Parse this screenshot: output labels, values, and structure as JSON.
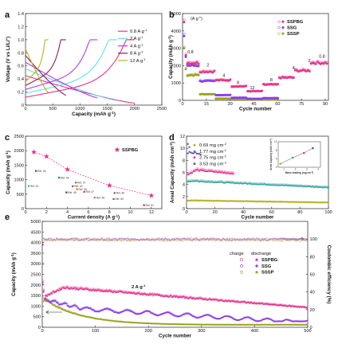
{
  "chart_data": [
    {
      "panel": "a",
      "type": "line",
      "xlabel": "Capacity (mAh g-1)",
      "ylabel": "Voltage (V vs Li/Li+)",
      "xlim": [
        0,
        2500
      ],
      "ylim": [
        0,
        1.4
      ],
      "xticks": [
        "0",
        "500",
        "1000",
        "1500",
        "2000",
        "2500"
      ],
      "yticks": [
        "0",
        "0.2",
        "0.4",
        "0.6",
        "0.8",
        "1.0",
        "1.2",
        "1.4"
      ],
      "series": [
        {
          "name": "0.8 A g-1",
          "color": "#e8338a",
          "capacity": 2000
        },
        {
          "name": "2 A g-1",
          "color": "#62e0e8",
          "capacity": 1680
        },
        {
          "name": "4 A g-1",
          "color": "#b23cf0",
          "capacity": 1320
        },
        {
          "name": "8 A g-1",
          "color": "#8e1d5e",
          "capacity": 740
        },
        {
          "name": "12 A g-1",
          "color": "#b3b322",
          "capacity": 420
        }
      ]
    },
    {
      "panel": "b",
      "type": "scatter",
      "xlabel": "Cycle number",
      "ylabel": "Capacity (mAh g-1)",
      "unit_label": "(A g-1)",
      "xlim": [
        0,
        92
      ],
      "ylim": [
        0,
        5000
      ],
      "xticks": [
        "0",
        "15",
        "30",
        "45",
        "60",
        "75",
        "90"
      ],
      "yticks": [
        "0",
        "1000",
        "2000",
        "3000",
        "4000",
        "5000"
      ],
      "legend": [
        "SSPBG",
        "SSG",
        "SSSP"
      ],
      "legend_colors": [
        "#e8338a",
        "#8a3cf0",
        "#9aa31c"
      ],
      "rate_labels": [
        {
          "text": "0.8",
          "x": 5,
          "y": 2700
        },
        {
          "text": "2",
          "x": 16,
          "y": 1950
        },
        {
          "text": "4",
          "x": 26,
          "y": 1350
        },
        {
          "text": "8",
          "x": 35,
          "y": 950
        },
        {
          "text": "12",
          "x": 44,
          "y": 650
        },
        {
          "text": "8",
          "x": 56,
          "y": 1100
        },
        {
          "text": "4",
          "x": 70,
          "y": 1800
        },
        {
          "text": "2",
          "x": 80,
          "y": 2200
        },
        {
          "text": "0.8",
          "x": 88,
          "y": 2450
        }
      ],
      "sspbg_segments": [
        {
          "from": 1,
          "to": 10,
          "value": 2150
        },
        {
          "from": 11,
          "to": 20,
          "value": 1650
        },
        {
          "from": 21,
          "to": 30,
          "value": 1150
        },
        {
          "from": 31,
          "to": 40,
          "value": 800
        },
        {
          "from": 41,
          "to": 50,
          "value": 520
        },
        {
          "from": 51,
          "to": 60,
          "value": 900
        },
        {
          "from": 61,
          "to": 70,
          "value": 1300
        },
        {
          "from": 71,
          "to": 80,
          "value": 1700
        },
        {
          "from": 81,
          "to": 91,
          "value": 2150
        }
      ],
      "ssg_segments": [
        {
          "from": 1,
          "to": 10,
          "value": 2000
        },
        {
          "from": 11,
          "to": 20,
          "value": 1100
        },
        {
          "from": 21,
          "to": 30,
          "value": 300
        },
        {
          "from": 31,
          "to": 40,
          "value": 150
        },
        {
          "from": 41,
          "to": 50,
          "value": 90
        },
        {
          "from": 51,
          "to": 60,
          "value": 130
        }
      ],
      "sssp_segments": [
        {
          "from": 1,
          "to": 10,
          "value": 1450
        },
        {
          "from": 11,
          "to": 20,
          "value": 350
        },
        {
          "from": 21,
          "to": 30,
          "value": 100
        },
        {
          "from": 31,
          "to": 40,
          "value": 60
        },
        {
          "from": 41,
          "to": 50,
          "value": 40
        },
        {
          "from": 51,
          "to": 60,
          "value": 50
        }
      ]
    },
    {
      "panel": "c",
      "type": "scatter",
      "xlabel": "Current density (A g-1)",
      "ylabel": "Capacity (mAh g-1)",
      "xlim": [
        0,
        13
      ],
      "ylim": [
        0,
        2500
      ],
      "xticks": [
        "0",
        "2",
        "4",
        "6",
        "8",
        "10",
        "12"
      ],
      "yticks": [
        "0",
        "500",
        "1000",
        "1500",
        "2000",
        "2500"
      ],
      "legend": [
        "SSPBG"
      ],
      "sspbg": {
        "x": [
          0.8,
          2,
          4,
          8,
          12
        ],
        "y": [
          1950,
          1800,
          1350,
          800,
          450
        ]
      },
      "refs": [
        {
          "label": "Ref. 26",
          "x": 1.0,
          "y": 1300,
          "color": "#2244aa"
        },
        {
          "label": "Ref. 43",
          "x": 0.3,
          "y": 780,
          "color": "#3aa6d8"
        },
        {
          "label": "Ref. 44",
          "x": 3.2,
          "y": 1070,
          "color": "#1c8a4a"
        },
        {
          "label": "Ref. 27",
          "x": 4.8,
          "y": 900,
          "color": "#7a7a16"
        },
        {
          "label": "Ref. 42",
          "x": 4.5,
          "y": 770,
          "color": "#6a55aa"
        },
        {
          "label": "Ref. 46",
          "x": 4.9,
          "y": 670,
          "color": "#cc7711"
        },
        {
          "label": "Ref. 45",
          "x": 3.9,
          "y": 560,
          "color": "#444444"
        },
        {
          "label": "Ref. 47",
          "x": 5.6,
          "y": 580,
          "color": "#aa3377"
        },
        {
          "label": "Ref. 48",
          "x": 6.6,
          "y": 380,
          "color": "#cc5599"
        },
        {
          "label": "Ref. 49",
          "x": 8.5,
          "y": 540,
          "color": "#8844aa"
        },
        {
          "label": "Ref. 50",
          "x": 8.4,
          "y": 330,
          "color": "#666666"
        },
        {
          "label": "Ref. 51",
          "x": 11.3,
          "y": 120,
          "color": "#cc2222"
        }
      ]
    },
    {
      "panel": "d",
      "type": "scatter",
      "xlabel": "Cycle number",
      "ylabel": "Areal Capacity (mAh cm-2)",
      "xlim": [
        0,
        100
      ],
      "ylim": [
        0,
        12
      ],
      "xticks": [
        "0",
        "20",
        "40",
        "60",
        "80",
        "100"
      ],
      "yticks": [
        "0",
        "2",
        "4",
        "6",
        "8",
        "10",
        "12"
      ],
      "series": [
        {
          "name": "0.69 mg cm-2",
          "color": "#b3b322",
          "start": 1.3,
          "plateau": 1.35,
          "end": 1.0,
          "cycles": 100
        },
        {
          "name": "1.77 mg cm-2",
          "color": "#3aa6a0",
          "start": 4.5,
          "plateau": 4.6,
          "end": 3.5,
          "cycles": 100
        },
        {
          "name": "2.75 mg cm-2",
          "color": "#e8338a",
          "start": 5.5,
          "plateau": 6.5,
          "end": 5.8,
          "cycles": 33
        },
        {
          "name": "3.53 mg cm-2",
          "color": "#5a4aa8",
          "start": 9.3,
          "plateau": 9.2,
          "end": 9.0,
          "cycles": 10
        }
      ],
      "inset": {
        "xlabel": "Mass loading (mg cm-2)",
        "ylabel": "Areal Capacity (mAh cm-2)",
        "x": [
          0.69,
          1.77,
          2.75,
          3.53
        ],
        "y": [
          1.6,
          4.5,
          6.7,
          9.0
        ],
        "xticks": [
          "1",
          "2",
          "3",
          "4"
        ],
        "yticks": [
          "0",
          "4",
          "8",
          "12"
        ]
      }
    },
    {
      "panel": "e",
      "type": "scatter",
      "xlabel": "Cycle number",
      "ylabel": "Capacity (mAh g-1)",
      "y2label": "Coulombic efficiency (%)",
      "annotation": "2 A g-1",
      "xlim": [
        0,
        500
      ],
      "ylim": [
        0,
        5000
      ],
      "y2lim": [
        0,
        120
      ],
      "xticks": [
        "0",
        "100",
        "200",
        "300",
        "400",
        "500"
      ],
      "yticks": [
        "0",
        "500",
        "1000",
        "1500",
        "2000",
        "2500",
        "3000",
        "3500",
        "4000",
        "4500",
        "5000"
      ],
      "y2ticks": [
        "0",
        "20",
        "40",
        "60",
        "80",
        "100"
      ],
      "legend_header": [
        "charge",
        "discharge"
      ],
      "legend": [
        "SSPBG",
        "SSG",
        "SSSP"
      ],
      "series": [
        {
          "name": "SSPBG",
          "color": "#e8338a",
          "ce_color": "#e8338a"
        },
        {
          "name": "SSG",
          "color": "#8a3cf0",
          "ce_color": "#5a4ad8"
        },
        {
          "name": "SSSP",
          "color": "#9aa31c",
          "ce_color": "#c4a030"
        }
      ],
      "coulombic_efficiency": 100
    }
  ]
}
